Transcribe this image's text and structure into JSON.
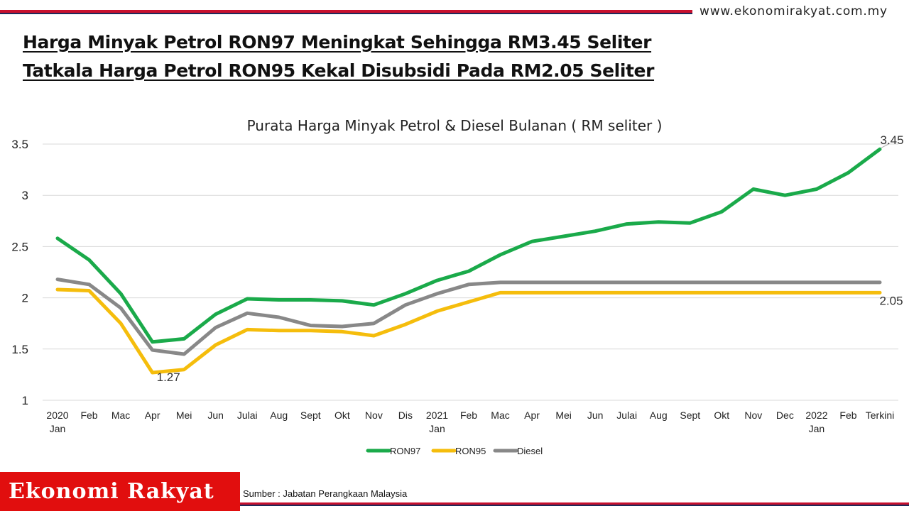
{
  "header": {
    "site_url": "www.ekonomirakyat.com.my",
    "headline_line1": "Harga Minyak Petrol RON97 Meningkat Sehingga RM3.45 Seliter",
    "headline_line2": "Tatkala Harga Petrol RON95 Kekal Disubsidi Pada RM2.05 Seliter"
  },
  "footer": {
    "logo_text": "Ekonomi Rakyat",
    "source": "Sumber  : Jabatan Perangkaan Malaysia"
  },
  "colors": {
    "RON97": "#1aaa4a",
    "RON95": "#f5bd0c",
    "Diesel": "#888888",
    "brand_red": "#e10e0e"
  },
  "chart_data": {
    "type": "line",
    "title": "Purata Harga Minyak Petrol & Diesel Bulanan ( RM seliter )",
    "categories": [
      [
        "2020",
        "Jan"
      ],
      [
        "Feb"
      ],
      [
        "Mac"
      ],
      [
        "Apr"
      ],
      [
        "Mei"
      ],
      [
        "Jun"
      ],
      [
        "Julai"
      ],
      [
        "Aug"
      ],
      [
        "Sept"
      ],
      [
        "Okt"
      ],
      [
        "Nov"
      ],
      [
        "Dis"
      ],
      [
        "2021",
        "Jan"
      ],
      [
        "Feb"
      ],
      [
        "Mac"
      ],
      [
        "Apr"
      ],
      [
        "Mei"
      ],
      [
        "Jun"
      ],
      [
        "Julai"
      ],
      [
        "Aug"
      ],
      [
        "Sept"
      ],
      [
        "Okt"
      ],
      [
        "Nov"
      ],
      [
        "Dec"
      ],
      [
        "2022",
        "Jan"
      ],
      [
        "Feb"
      ],
      [
        "Terkini"
      ]
    ],
    "ylim": [
      1,
      3.5
    ],
    "yticks": [
      "1",
      "1.5",
      "2",
      "2.5",
      "3",
      "3.5"
    ],
    "grid": true,
    "legend_position": "bottom",
    "series": [
      {
        "name": "RON97",
        "values": [
          2.58,
          2.37,
          2.04,
          1.57,
          1.6,
          1.84,
          1.99,
          1.98,
          1.98,
          1.97,
          1.93,
          2.04,
          2.17,
          2.26,
          2.42,
          2.55,
          2.6,
          2.65,
          2.72,
          2.74,
          2.73,
          2.84,
          3.06,
          3.0,
          3.06,
          3.22,
          3.45
        ]
      },
      {
        "name": "RON95",
        "values": [
          2.08,
          2.07,
          1.75,
          1.27,
          1.3,
          1.54,
          1.69,
          1.68,
          1.68,
          1.67,
          1.63,
          1.74,
          1.87,
          1.96,
          2.05,
          2.05,
          2.05,
          2.05,
          2.05,
          2.05,
          2.05,
          2.05,
          2.05,
          2.05,
          2.05,
          2.05,
          2.05
        ]
      },
      {
        "name": "Diesel",
        "values": [
          2.18,
          2.13,
          1.9,
          1.49,
          1.45,
          1.71,
          1.85,
          1.81,
          1.73,
          1.72,
          1.75,
          1.93,
          2.04,
          2.13,
          2.15,
          2.15,
          2.15,
          2.15,
          2.15,
          2.15,
          2.15,
          2.15,
          2.15,
          2.15,
          2.15,
          2.15,
          2.15
        ]
      }
    ],
    "annotations": [
      {
        "text": "3.45",
        "series": "RON97",
        "index": 26
      },
      {
        "text": "2.05",
        "series": "RON95",
        "index": 26
      },
      {
        "text": "1.27",
        "series": "RON95",
        "index": 3
      }
    ]
  }
}
